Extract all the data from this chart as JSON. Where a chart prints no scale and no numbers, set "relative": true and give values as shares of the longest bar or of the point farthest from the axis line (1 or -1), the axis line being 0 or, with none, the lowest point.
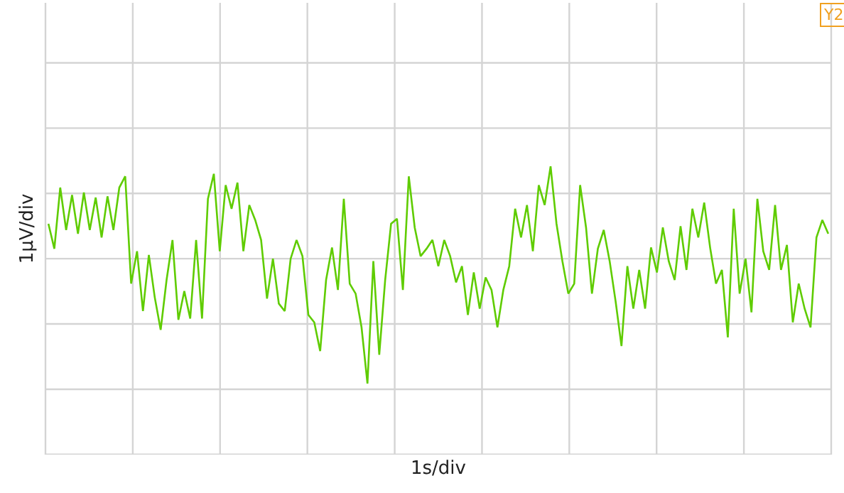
{
  "chart_data": {
    "type": "line",
    "relative": true,
    "xlabel": "1s/div",
    "ylabel": "1μV/div",
    "grid": true,
    "annotations": [
      "Y2"
    ],
    "categories": [
      null,
      null,
      null,
      null,
      null,
      null,
      null,
      null,
      null,
      null,
      null,
      null,
      null,
      null,
      null,
      null,
      null,
      null,
      null,
      null,
      null,
      null,
      null,
      null,
      null,
      null,
      null,
      null,
      null,
      null,
      null,
      null,
      null,
      null,
      null,
      null,
      null,
      null,
      null,
      null,
      null,
      null,
      null,
      null,
      null,
      null,
      null,
      null,
      null,
      null,
      null,
      null,
      null,
      null,
      null,
      null,
      null,
      null,
      null,
      null,
      null,
      null,
      null,
      null,
      null,
      null,
      null,
      null,
      null,
      null,
      null,
      null,
      null,
      null,
      null,
      null,
      null,
      null,
      null,
      null,
      null,
      null,
      null,
      null,
      null,
      null,
      null,
      null,
      null,
      null,
      null,
      null,
      null,
      null,
      null,
      null,
      null,
      null,
      null,
      null,
      null,
      null,
      null,
      null,
      null,
      null,
      null,
      null,
      null,
      null,
      null,
      null,
      null,
      null,
      null,
      null,
      null,
      null,
      null,
      null,
      null,
      null,
      null,
      null,
      null,
      null,
      null,
      null,
      null,
      null,
      null,
      null,
      null
    ],
    "series": [
      {
        "color": "#5fcc00",
        "values": [
          0.28,
          0.08,
          0.57,
          0.23,
          0.51,
          0.2,
          0.53,
          0.23,
          0.49,
          0.17,
          0.5,
          0.23,
          0.57,
          0.66,
          -0.2,
          0.06,
          -0.42,
          0.03,
          -0.31,
          -0.57,
          -0.17,
          0.15,
          -0.49,
          -0.26,
          -0.48,
          0.15,
          -0.48,
          0.48,
          0.68,
          0.06,
          0.59,
          0.4,
          0.61,
          0.06,
          0.43,
          0.31,
          0.15,
          -0.32,
          0,
          -0.36,
          -0.42,
          0,
          0.15,
          0.02,
          -0.45,
          -0.51,
          -0.74,
          -0.17,
          0.09,
          -0.25,
          0.48,
          -0.2,
          -0.28,
          -0.55,
          -1,
          -0.02,
          -0.77,
          -0.17,
          0.28,
          0.32,
          -0.25,
          0.66,
          0.25,
          0.02,
          0.08,
          0.15,
          -0.06,
          0.15,
          0.02,
          -0.19,
          -0.06,
          -0.45,
          -0.11,
          -0.4,
          -0.15,
          -0.25,
          -0.55,
          -0.25,
          -0.06,
          0.4,
          0.17,
          0.43,
          0.06,
          0.59,
          0.43,
          0.74,
          0.28,
          -0.02,
          -0.28,
          -0.2,
          0.59,
          0.25,
          -0.28,
          0.08,
          0.23,
          -0.02,
          -0.34,
          -0.7,
          -0.06,
          -0.4,
          -0.09,
          -0.4,
          0.09,
          -0.11,
          0.25,
          -0.02,
          -0.17,
          0.26,
          -0.09,
          0.4,
          0.17,
          0.45,
          0.09,
          -0.2,
          -0.09,
          -0.63,
          0.4,
          -0.28,
          0,
          -0.43,
          0.48,
          0.06,
          -0.09,
          0.43,
          -0.09,
          0.11,
          -0.51,
          -0.2,
          -0.4,
          -0.55,
          0.17,
          0.31,
          0.2
        ]
      }
    ]
  }
}
